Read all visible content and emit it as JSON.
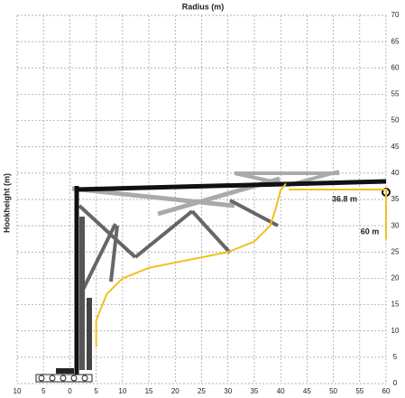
{
  "chart_data": {
    "type": "line",
    "title": "Radius (m)",
    "y_label": "Hookheight (m)",
    "annotations": [
      "36.8 m",
      "60 m"
    ],
    "x": [
      5,
      5,
      7,
      10,
      15,
      20,
      25,
      30,
      35,
      38,
      39,
      40,
      41
    ],
    "series": [
      {
        "color": "#f0c020",
        "values": [
          7,
          12,
          17,
          20,
          22,
          23,
          24,
          25,
          27,
          30,
          33,
          36.8,
          38
        ]
      }
    ],
    "xlim": [
      -10,
      60
    ],
    "ylim": [
      0,
      70
    ],
    "xticks": [
      {
        "value": -10,
        "label": "10"
      },
      {
        "value": -5,
        "label": "5"
      },
      0,
      5,
      10,
      15,
      20,
      25,
      30,
      35,
      40,
      45,
      50,
      55,
      60
    ],
    "yticks": [
      0,
      5,
      10,
      15,
      20,
      25,
      30,
      35,
      40,
      45,
      50,
      55,
      60,
      65,
      70
    ],
    "grid": true
  }
}
